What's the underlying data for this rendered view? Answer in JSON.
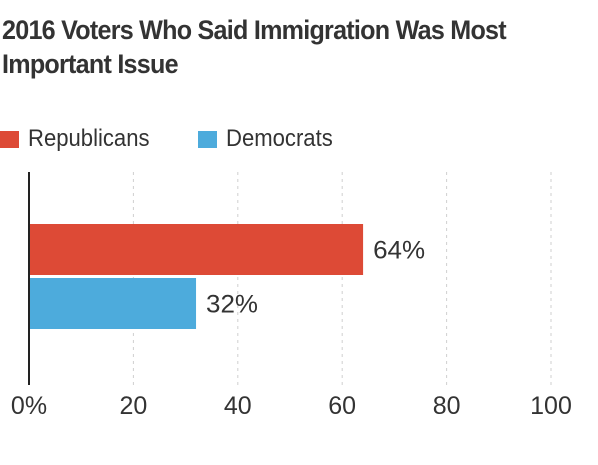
{
  "title": "2016 Voters Who Said Immigration Was Most Important Issue",
  "legend": [
    {
      "label": "Republicans",
      "color": "#dd4a36"
    },
    {
      "label": "Democrats",
      "color": "#4dabdc"
    }
  ],
  "chart_data": {
    "type": "bar",
    "orientation": "horizontal",
    "title": "2016 Voters Who Said Immigration Was Most Important Issue",
    "categories": [
      "Republicans",
      "Democrats"
    ],
    "values": [
      64,
      32
    ],
    "value_labels": [
      "64%",
      "32%"
    ],
    "colors": [
      "#dd4a36",
      "#4dabdc"
    ],
    "xlim": [
      0,
      100
    ],
    "xticks": [
      0,
      20,
      40,
      60,
      80,
      100
    ],
    "xtick_labels": [
      "0%",
      "20",
      "40",
      "60",
      "80",
      "100"
    ],
    "xlabel": "",
    "ylabel": "",
    "grid": "vertical dashed",
    "legend_position": "top-left"
  }
}
